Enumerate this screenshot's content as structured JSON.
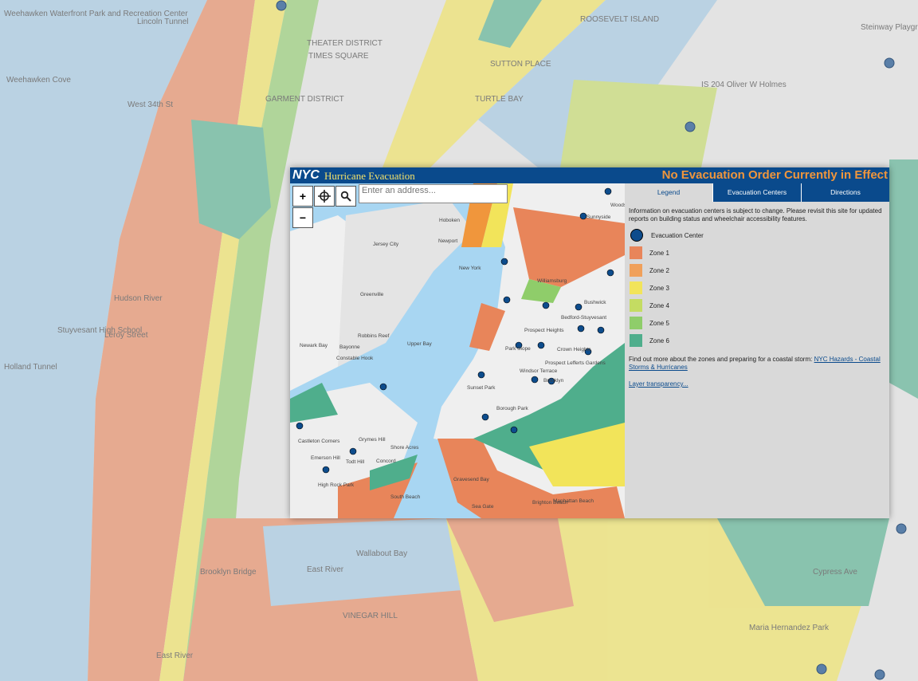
{
  "header": {
    "logo": "NYC",
    "title": "Hurricane Evacuation",
    "status": "No Evacuation Order Currently in Effect"
  },
  "search": {
    "placeholder": "Enter an address..."
  },
  "zoom": {
    "in": "+",
    "out": "−"
  },
  "tabs": [
    "Legend",
    "Evacuation Centers",
    "Directions"
  ],
  "legend": {
    "info": "Information on evacuation centers is subject to change. Please revisit this site for updated reports on building status and wheelchair accessibility features.",
    "items": [
      {
        "label": "Evacuation Center",
        "color": "#0d4c8c"
      },
      {
        "label": "Zone 1",
        "color": "#e8855a"
      },
      {
        "label": "Zone 2",
        "color": "#f0a05a"
      },
      {
        "label": "Zone 3",
        "color": "#f2e45a"
      },
      {
        "label": "Zone 4",
        "color": "#c4dc62"
      },
      {
        "label": "Zone 5",
        "color": "#8fcd6a"
      },
      {
        "label": "Zone 6",
        "color": "#4fae8c"
      }
    ],
    "more_text": "Find out more about the zones and preparing for a coastal storm:",
    "more_link": "NYC Hazards - Coastal Storms & Hurricanes",
    "transparency_link": "Layer transparency..."
  },
  "background_labels": [
    "Weehawken Waterfront Park and Recreation Center",
    "Lincoln Tunnel",
    "Weehawken Cove",
    "West 34th St",
    "GARMENT DISTRICT",
    "THEATER DISTRICT",
    "TIMES SQUARE",
    "SUTTON PLACE",
    "TURTLE BAY",
    "Hudson River",
    "Leroy Street",
    "Holland Tunnel",
    "Stuyvesant High School",
    "East River",
    "Brooklyn Bridge",
    "Wallabout Bay",
    "VINEGAR HILL",
    "East River",
    "IS 204 Oliver W Holmes",
    "Steinway Playground",
    "Cypress Ave",
    "Maria Hernandez Park",
    "ROOSEVELT ISLAND"
  ],
  "inset_labels": [
    "Hoboken",
    "Jersey City",
    "Newport",
    "New York",
    "Greenville",
    "Robbins Reef",
    "Bayonne",
    "Constable Hook",
    "Newark Bay",
    "Upper Bay",
    "Sunnyside",
    "Woodside",
    "Williamsburg",
    "Bushwick",
    "Bedford-Stuyvesant",
    "Prospect Heights",
    "Crown Heights",
    "Park Slope",
    "Prospect Lefferts Gardens",
    "Windsor Terrace",
    "Sunset Park",
    "Brooklyn",
    "Borough Park",
    "Castleton Corners",
    "Grymes Hill",
    "Shore Acres",
    "Emerson Hill",
    "Todt Hill",
    "Concord",
    "High Rock Park",
    "South Beach",
    "Gravesend Bay",
    "Brighton Beach",
    "Manhattan Beach",
    "Sea Gate"
  ]
}
